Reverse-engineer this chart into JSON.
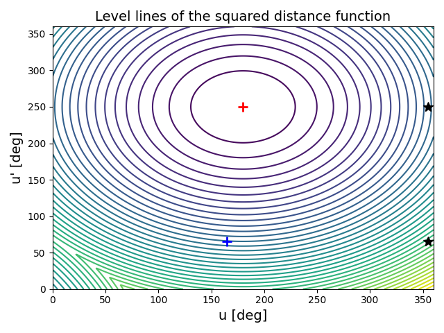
{
  "title": "Level lines of the squared distance function",
  "xlabel": "u [deg]",
  "ylabel": "u' [deg]",
  "xmin": 0,
  "xmax": 360,
  "ymin": 0,
  "ymax": 360,
  "ytick_max": 350,
  "xticks": [
    0,
    50,
    100,
    150,
    200,
    250,
    300,
    350
  ],
  "yticks": [
    0,
    50,
    100,
    150,
    200,
    250,
    300,
    350
  ],
  "red_cross": [
    180,
    250
  ],
  "blue_cross": [
    165,
    65
  ],
  "star1": [
    355,
    250
  ],
  "star2": [
    355,
    65
  ],
  "n_levels": 40,
  "cmap": "viridis",
  "figsize": [
    6.4,
    4.8
  ],
  "dpi": 100,
  "n_range": 4
}
